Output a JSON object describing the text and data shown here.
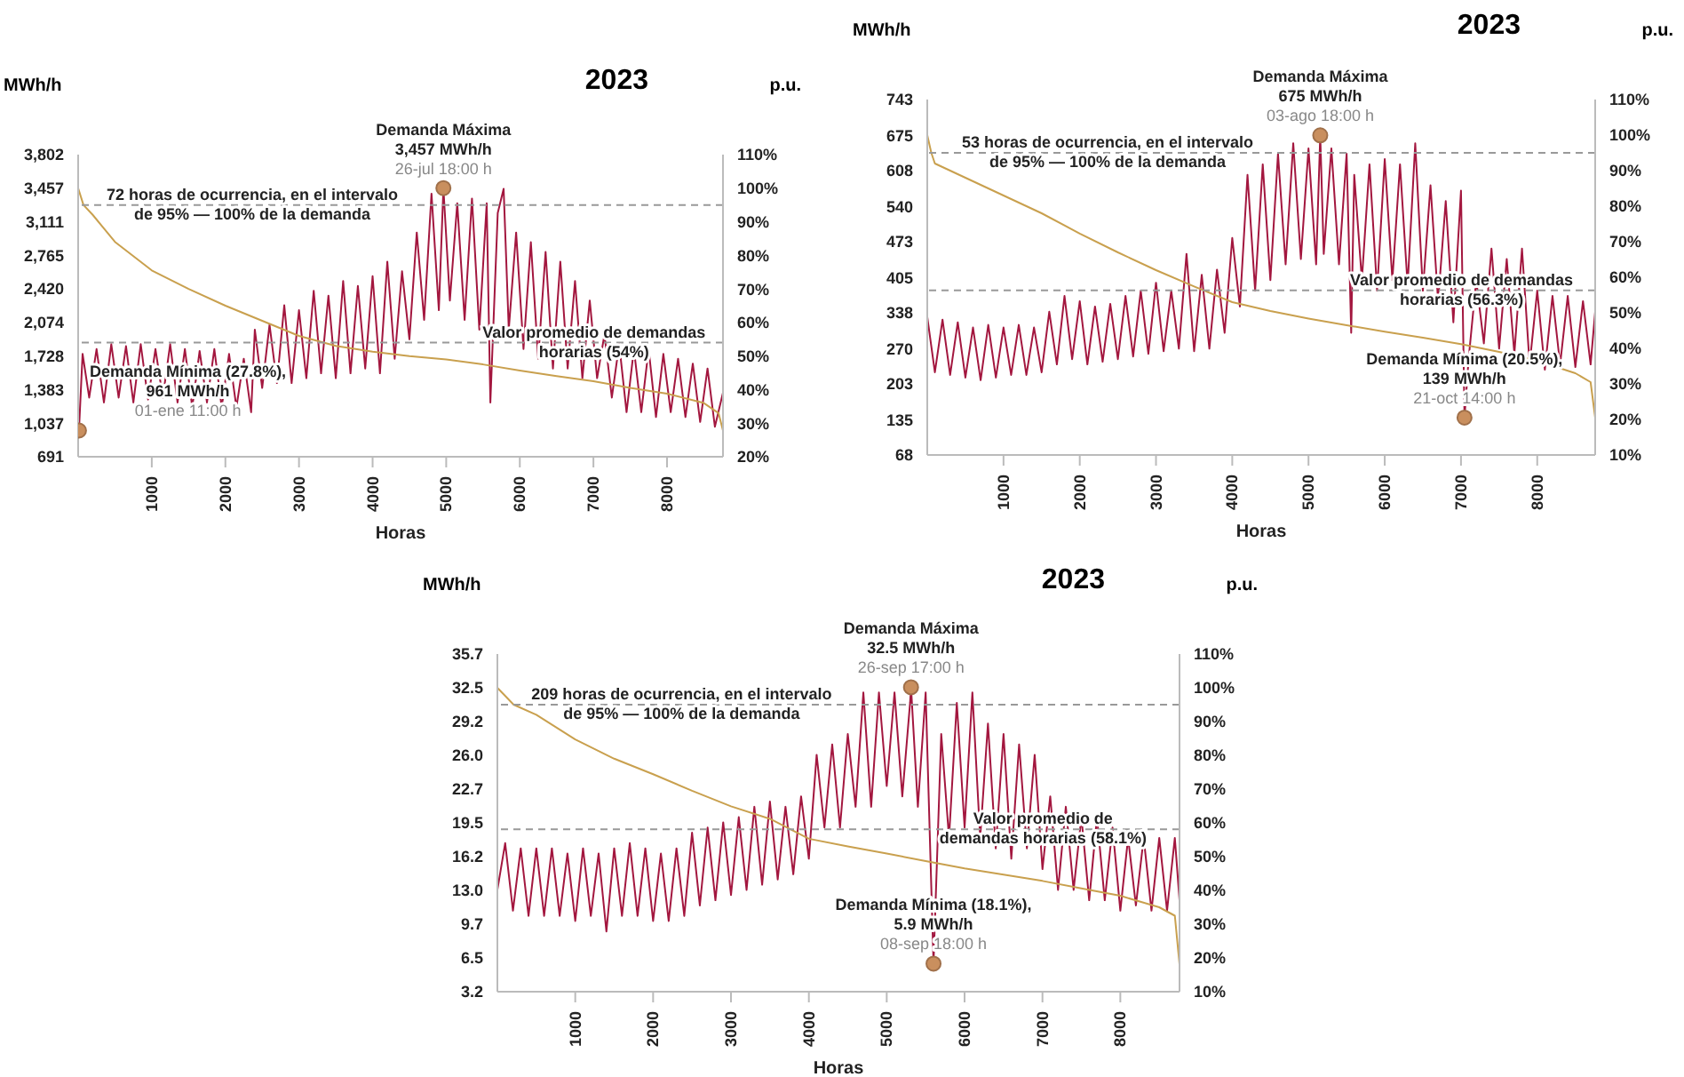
{
  "chart_data": [
    {
      "type": "line",
      "title": "2023",
      "ylabel": "MWh/h",
      "y2label": "p.u.",
      "xlabel": "Horas",
      "xlim": [
        0,
        8760
      ],
      "xticks": [
        1000,
        2000,
        3000,
        4000,
        5000,
        6000,
        7000,
        8000
      ],
      "ylim": [
        691,
        3802
      ],
      "yticks": [
        {
          "value": 691,
          "label": "691"
        },
        {
          "value": 1037,
          "label": "1,037"
        },
        {
          "value": 1383,
          "label": "1,383"
        },
        {
          "value": 1728,
          "label": "1,728"
        },
        {
          "value": 2074,
          "label": "2,074"
        },
        {
          "value": 2420,
          "label": "2,420"
        },
        {
          "value": 2765,
          "label": "2,765"
        },
        {
          "value": 3111,
          "label": "3,111"
        },
        {
          "value": 3457,
          "label": "3,457"
        },
        {
          "value": 3802,
          "label": "3,802"
        }
      ],
      "y2lim": [
        20,
        110
      ],
      "y2ticks": [
        {
          "value": 20,
          "label": "20%"
        },
        {
          "value": 30,
          "label": "30%"
        },
        {
          "value": 40,
          "label": "40%"
        },
        {
          "value": 50,
          "label": "50%"
        },
        {
          "value": 60,
          "label": "60%"
        },
        {
          "value": 70,
          "label": "70%"
        },
        {
          "value": 80,
          "label": "80%"
        },
        {
          "value": 90,
          "label": "90%"
        },
        {
          "value": 100,
          "label": "100%"
        },
        {
          "value": 110,
          "label": "110%"
        }
      ],
      "series": [
        {
          "type": "line",
          "color": "#a3173f",
          "x": [
            0,
            11,
            60,
            150,
            250,
            350,
            450,
            550,
            650,
            750,
            850,
            950,
            1050,
            1150,
            1250,
            1350,
            1450,
            1550,
            1650,
            1750,
            1850,
            1950,
            2050,
            2150,
            2250,
            2350,
            2400,
            2500,
            2600,
            2700,
            2800,
            2900,
            3000,
            3100,
            3200,
            3300,
            3400,
            3500,
            3600,
            3700,
            3800,
            3900,
            4000,
            4100,
            4200,
            4300,
            4400,
            4500,
            4600,
            4700,
            4800,
            4900,
            4962,
            5050,
            5150,
            5250,
            5350,
            5450,
            5550,
            5600,
            5700,
            5780,
            5850,
            5950,
            6050,
            6150,
            6250,
            6350,
            6450,
            6550,
            6650,
            6750,
            6850,
            6950,
            7050,
            7150,
            7250,
            7350,
            7450,
            7550,
            7650,
            7750,
            7850,
            7950,
            8050,
            8150,
            8250,
            8350,
            8450,
            8550,
            8650,
            8760
          ],
          "values": [
            1100,
            961,
            1750,
            1300,
            1800,
            1250,
            1850,
            1300,
            1830,
            1250,
            1850,
            1280,
            1800,
            1300,
            1850,
            1250,
            1800,
            1200,
            1780,
            1250,
            1800,
            1200,
            1750,
            1200,
            1700,
            1150,
            2000,
            1400,
            2050,
            1450,
            2250,
            1450,
            2200,
            1500,
            2400,
            1550,
            2350,
            1500,
            2500,
            1550,
            2450,
            1600,
            2550,
            1550,
            2700,
            1700,
            2600,
            1900,
            3000,
            2100,
            3400,
            2200,
            3457,
            2300,
            3300,
            2100,
            3350,
            2000,
            3300,
            1250,
            3200,
            3450,
            2000,
            3000,
            1800,
            2900,
            1700,
            2800,
            1600,
            2700,
            1600,
            2500,
            1500,
            2300,
            1500,
            1950,
            1300,
            1850,
            1150,
            1800,
            1150,
            1800,
            1100,
            1750,
            1150,
            1700,
            1100,
            1650,
            1050,
            1600,
            1000,
            1350
          ]
        },
        {
          "type": "line",
          "axis": "y2",
          "color": "#c9a04e",
          "x": [
            0,
            72,
            200,
            500,
            1000,
            1500,
            2000,
            2500,
            3000,
            3500,
            4000,
            4500,
            5000,
            5500,
            6000,
            6500,
            7000,
            7500,
            8000,
            8500,
            8700,
            8760
          ],
          "values": [
            100,
            95,
            92,
            84,
            75.5,
            70,
            65,
            60.5,
            56,
            53,
            51.3,
            50,
            49,
            47.5,
            45.7,
            44,
            42.5,
            40.5,
            38.8,
            36,
            33,
            27.8
          ]
        },
        {
          "type": "scatter",
          "color": "#c98f5e",
          "x": [
            4962,
            11
          ],
          "values": [
            3457,
            961
          ]
        }
      ],
      "ref_lines": [
        {
          "axis": "y2",
          "value": 95,
          "label": "72 horas de ocurrencia, en el intervalo\nde 95% — 100% de la demanda",
          "color": "#999999",
          "line_style": "dashed"
        },
        {
          "axis": "y2",
          "value": 54,
          "label": "Valor promedio de demandas\nhorarias (54%)",
          "color": "#999999",
          "line_style": "dashed"
        }
      ],
      "annotations": [
        {
          "text": "Demanda Máxima\n3,457 MWh/h\n26-jul 18:00 h",
          "x": 4962,
          "y": 3457
        },
        {
          "text": "Demanda Mínima (27.8%),\n961 MWh/h\n01-ene 11:00 h",
          "x": 11,
          "y": 961
        }
      ]
    },
    {
      "type": "line",
      "title": "2023",
      "ylabel": "MWh/h",
      "y2label": "p.u.",
      "xlabel": "Horas",
      "xlim": [
        0,
        8760
      ],
      "xticks": [
        1000,
        2000,
        3000,
        4000,
        5000,
        6000,
        7000,
        8000
      ],
      "ylim": [
        68,
        743
      ],
      "yticks": [
        68,
        135,
        203,
        270,
        338,
        405,
        473,
        540,
        608,
        675,
        743
      ],
      "y2lim": [
        10,
        110
      ],
      "y2ticks": [
        {
          "value": 10,
          "label": "10%"
        },
        {
          "value": 20,
          "label": "20%"
        },
        {
          "value": 30,
          "label": "30%"
        },
        {
          "value": 40,
          "label": "40%"
        },
        {
          "value": 50,
          "label": "50%"
        },
        {
          "value": 60,
          "label": "60%"
        },
        {
          "value": 70,
          "label": "70%"
        },
        {
          "value": 80,
          "label": "80%"
        },
        {
          "value": 90,
          "label": "90%"
        },
        {
          "value": 100,
          "label": "100%"
        },
        {
          "value": 110,
          "label": "110%"
        }
      ],
      "series": [
        {
          "type": "line",
          "color": "#a3173f",
          "x": [
            0,
            100,
            200,
            300,
            400,
            500,
            600,
            700,
            800,
            900,
            1000,
            1100,
            1200,
            1300,
            1400,
            1500,
            1600,
            1700,
            1800,
            1900,
            2000,
            2100,
            2200,
            2300,
            2400,
            2500,
            2600,
            2700,
            2800,
            2900,
            3000,
            3100,
            3200,
            3300,
            3400,
            3500,
            3600,
            3700,
            3800,
            3900,
            4000,
            4100,
            4200,
            4300,
            4400,
            4500,
            4600,
            4700,
            4800,
            4900,
            5000,
            5100,
            5154,
            5200,
            5300,
            5400,
            5500,
            5560,
            5600,
            5700,
            5800,
            5900,
            6000,
            6100,
            6200,
            6300,
            6400,
            6500,
            6600,
            6700,
            6800,
            6900,
            7000,
            7046,
            7100,
            7200,
            7300,
            7400,
            7500,
            7600,
            7700,
            7800,
            7900,
            8000,
            8100,
            8200,
            8300,
            8400,
            8500,
            8600,
            8700,
            8760
          ],
          "values": [
            330,
            225,
            325,
            220,
            320,
            215,
            310,
            210,
            315,
            215,
            310,
            220,
            315,
            220,
            310,
            225,
            340,
            240,
            370,
            250,
            360,
            240,
            350,
            245,
            355,
            250,
            370,
            255,
            380,
            260,
            395,
            265,
            380,
            270,
            450,
            265,
            410,
            270,
            420,
            300,
            480,
            350,
            600,
            380,
            620,
            400,
            640,
            430,
            660,
            440,
            650,
            430,
            675,
            450,
            650,
            430,
            640,
            300,
            600,
            400,
            620,
            380,
            630,
            400,
            620,
            390,
            660,
            380,
            580,
            360,
            550,
            320,
            570,
            139,
            250,
            400,
            280,
            460,
            270,
            440,
            260,
            460,
            240,
            380,
            230,
            370,
            240,
            370,
            235,
            360,
            240,
            340
          ]
        },
        {
          "type": "line",
          "axis": "y2",
          "color": "#c9a04e",
          "x": [
            0,
            53,
            100,
            500,
            1000,
            1500,
            2000,
            2500,
            3000,
            3500,
            4000,
            4500,
            5000,
            5500,
            6000,
            6500,
            7000,
            7500,
            8000,
            8500,
            8700,
            8760
          ],
          "values": [
            100,
            95,
            92,
            88,
            83,
            78,
            72.3,
            67,
            62,
            57.4,
            53,
            50.5,
            48.4,
            46.5,
            44.7,
            43,
            41.2,
            39,
            36.5,
            33,
            30.5,
            20.5
          ]
        },
        {
          "type": "scatter",
          "color": "#c98f5e",
          "x": [
            5154,
            7046
          ],
          "values": [
            675,
            139
          ]
        }
      ],
      "ref_lines": [
        {
          "axis": "y2",
          "value": 95,
          "label": "53 horas de ocurrencia, en el intervalo\nde 95% — 100% de la demanda",
          "color": "#999999",
          "line_style": "dashed"
        },
        {
          "axis": "y2",
          "value": 56.3,
          "label": "Valor promedio de demandas\nhorarias (56.3%)",
          "color": "#999999",
          "line_style": "dashed"
        }
      ],
      "annotations": [
        {
          "text": "Demanda Máxima\n675 MWh/h\n03-ago 18:00 h",
          "x": 5154,
          "y": 675
        },
        {
          "text": "Demanda Mínima (20.5%),\n139 MWh/h\n21-oct 14:00 h",
          "x": 7046,
          "y": 139
        }
      ]
    },
    {
      "type": "line",
      "title": "2023",
      "ylabel": "MWh/h",
      "y2label": "p.u.",
      "xlabel": "Horas",
      "xlim": [
        0,
        8760
      ],
      "xticks": [
        1000,
        2000,
        3000,
        4000,
        5000,
        6000,
        7000,
        8000
      ],
      "ylim": [
        3.2,
        35.7
      ],
      "yticks": [
        3.2,
        6.5,
        9.7,
        {
          "value": 13,
          "label": "13.0"
        },
        16.2,
        19.5,
        22.7,
        {
          "value": 26,
          "label": "26.0"
        },
        29.2,
        32.5,
        35.7
      ],
      "y2lim": [
        10,
        110
      ],
      "y2ticks": [
        {
          "value": 10,
          "label": "10%"
        },
        {
          "value": 20,
          "label": "20%"
        },
        {
          "value": 30,
          "label": "30%"
        },
        {
          "value": 40,
          "label": "40%"
        },
        {
          "value": 50,
          "label": "50%"
        },
        {
          "value": 60,
          "label": "60%"
        },
        {
          "value": 70,
          "label": "70%"
        },
        {
          "value": 80,
          "label": "80%"
        },
        {
          "value": 90,
          "label": "90%"
        },
        {
          "value": 100,
          "label": "100%"
        },
        {
          "value": 110,
          "label": "110%"
        }
      ],
      "series": [
        {
          "type": "line",
          "color": "#a3173f",
          "x": [
            0,
            100,
            200,
            300,
            400,
            500,
            600,
            700,
            800,
            900,
            1000,
            1100,
            1200,
            1300,
            1400,
            1500,
            1600,
            1700,
            1800,
            1900,
            2000,
            2100,
            2200,
            2300,
            2400,
            2500,
            2600,
            2700,
            2800,
            2900,
            3000,
            3100,
            3200,
            3300,
            3400,
            3500,
            3600,
            3700,
            3800,
            3900,
            4000,
            4100,
            4200,
            4300,
            4400,
            4500,
            4600,
            4700,
            4800,
            4900,
            5000,
            5100,
            5200,
            5300,
            5312,
            5400,
            5500,
            5601,
            5700,
            5800,
            5900,
            6000,
            6100,
            6200,
            6300,
            6400,
            6500,
            6600,
            6700,
            6800,
            6900,
            7000,
            7100,
            7200,
            7300,
            7400,
            7500,
            7600,
            7700,
            7800,
            7900,
            8000,
            8100,
            8200,
            8300,
            8400,
            8500,
            8600,
            8700,
            8760
          ],
          "values": [
            13,
            17.5,
            11,
            17,
            10.5,
            17,
            10.5,
            17,
            10.5,
            16.5,
            10,
            17,
            10.5,
            16.5,
            9,
            17,
            10.5,
            17.5,
            10.5,
            17,
            10,
            16.5,
            10,
            17,
            10.5,
            18.5,
            11.5,
            19,
            12,
            19.5,
            12.5,
            20,
            13,
            21,
            13.5,
            21.5,
            14,
            21,
            14.5,
            22,
            16,
            26,
            19,
            27,
            19,
            28,
            21,
            32,
            21,
            32,
            23,
            32,
            22,
            31,
            32.5,
            21,
            32,
            5.9,
            28,
            18,
            31,
            19,
            32,
            18,
            29,
            17,
            28,
            16,
            27,
            17,
            26,
            15,
            22,
            13,
            21,
            13,
            20,
            12,
            20,
            12,
            19,
            11,
            18,
            11.5,
            18,
            11,
            18,
            11,
            18,
            12
          ]
        },
        {
          "type": "line",
          "axis": "y2",
          "color": "#c9a04e",
          "x": [
            0,
            209,
            500,
            1000,
            1500,
            2000,
            2500,
            3000,
            3500,
            4000,
            4500,
            5000,
            5500,
            6000,
            6500,
            7000,
            7500,
            8000,
            8500,
            8700,
            8760
          ],
          "values": [
            100,
            95,
            92,
            84.7,
            79,
            74.4,
            69.5,
            64.9,
            61.2,
            55.3,
            53,
            50.9,
            48.7,
            46.5,
            44.7,
            42.8,
            40.6,
            38.4,
            35,
            32.5,
            18.1
          ]
        },
        {
          "type": "scatter",
          "color": "#c98f5e",
          "x": [
            5312,
            5601
          ],
          "values": [
            32.5,
            5.9
          ]
        }
      ],
      "ref_lines": [
        {
          "axis": "y2",
          "value": 95,
          "label": "209 horas de ocurrencia, en el intervalo\nde 95% — 100% de la demanda",
          "color": "#999999",
          "line_style": "dashed"
        },
        {
          "axis": "y2",
          "value": 58.1,
          "label": "Valor promedio de\ndemandas horarias (58.1%)",
          "color": "#999999",
          "line_style": "dashed"
        }
      ],
      "annotations": [
        {
          "text": "Demanda Máxima\n32.5 MWh/h\n26-sep 17:00 h",
          "x": 5312,
          "y": 32.5
        },
        {
          "text": "Demanda Mínima (18.1%),\n5.9 MWh/h\n08-sep 18:00 h",
          "x": 5601,
          "y": 5.9
        }
      ]
    }
  ]
}
